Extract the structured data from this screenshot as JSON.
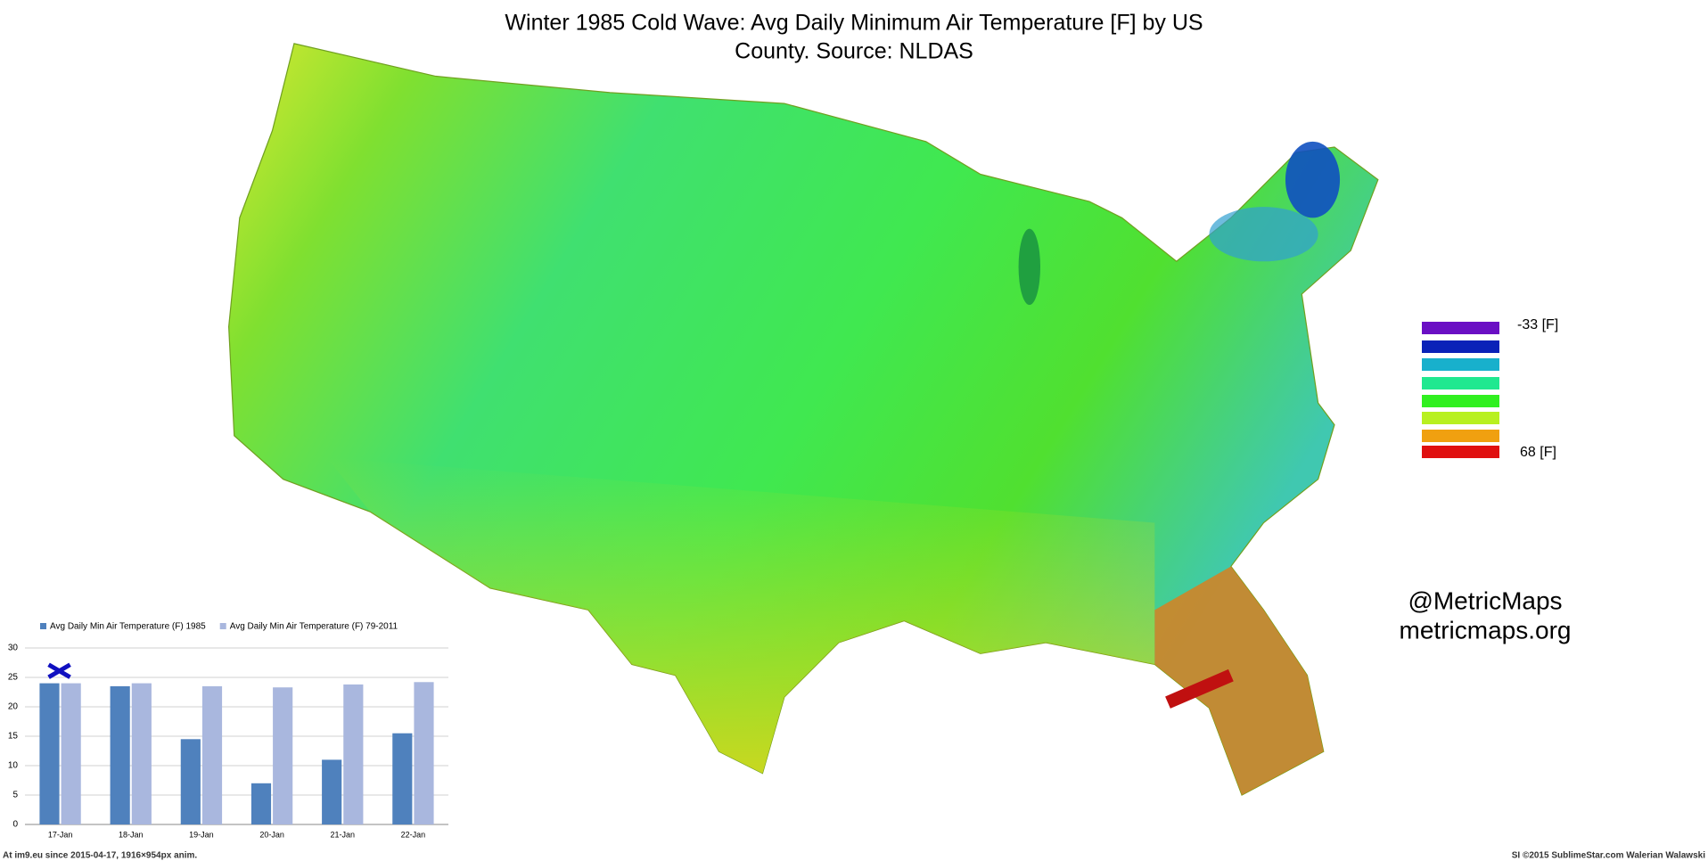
{
  "title": "Winter 1985 Cold Wave:  Avg Daily Minimum Air Temperature [F] by US County.  Source: NLDAS",
  "title_lines": [
    "Winter 1985 Cold Wave:  Avg Daily Minimum Air Temperature [F] by US",
    "County.  Source: NLDAS"
  ],
  "legend": {
    "min_label": "-33 [F]",
    "max_label": "68 [F]",
    "colors": [
      "#6a0fc4",
      "#0a22b8",
      "#18b0cc",
      "#20e890",
      "#30f020",
      "#b8f020",
      "#f0a010",
      "#e01010"
    ]
  },
  "credits": [
    "@MetricMaps",
    "metricmaps.org"
  ],
  "footer": {
    "left": "At im9.eu since 2015-04-17, 1916×954px anim.",
    "right": "SI ©2015 SublimeStar.com Walerian Walawski"
  },
  "chart_data": {
    "type": "bar",
    "categories": [
      "17-Jan",
      "18-Jan",
      "19-Jan",
      "20-Jan",
      "21-Jan",
      "22-Jan"
    ],
    "series": [
      {
        "name": "Avg Daily Min Air Temperature (F) 1985",
        "color": "#4f81bd",
        "values": [
          24,
          23.5,
          14.5,
          7,
          11,
          15.5
        ]
      },
      {
        "name": "Avg Daily Min Air Temperature (F) 79-2011",
        "color": "#a9b7de",
        "values": [
          24,
          24,
          23.5,
          23.3,
          23.8,
          24.2
        ]
      }
    ],
    "ylim": [
      0,
      30
    ],
    "yticks": [
      0,
      5,
      10,
      15,
      20,
      25,
      30
    ],
    "grid": true
  }
}
